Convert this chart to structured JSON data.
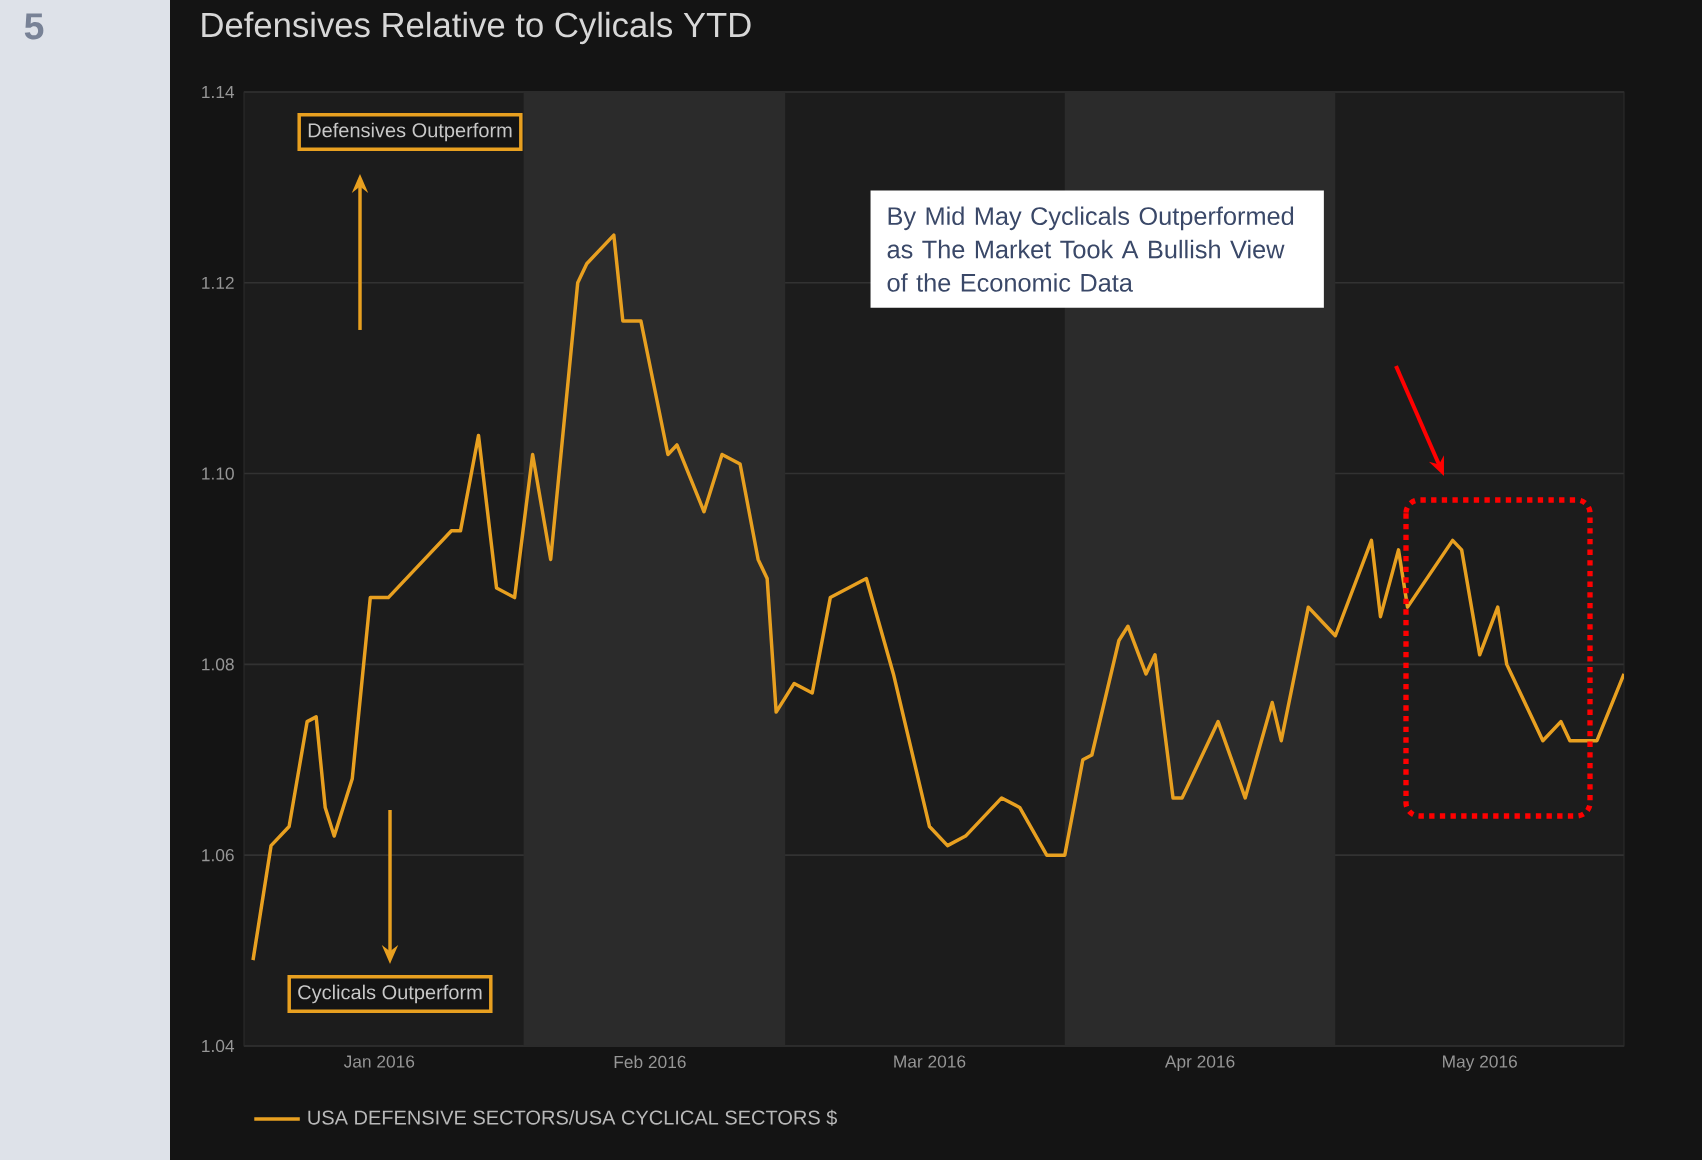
{
  "chart_data": {
    "type": "line",
    "title": "Defensives Relative to Cylicals YTD",
    "x": [
      "2016-01-02",
      "2016-01-04",
      "2016-01-06",
      "2016-01-08",
      "2016-01-09",
      "2016-01-10",
      "2016-01-11",
      "2016-01-13",
      "2016-01-15",
      "2016-01-17",
      "2016-01-21",
      "2016-01-24",
      "2016-01-25",
      "2016-01-27",
      "2016-01-29",
      "2016-01-31",
      "2016-02-02",
      "2016-02-04",
      "2016-02-07",
      "2016-02-08",
      "2016-02-11",
      "2016-02-12",
      "2016-02-14",
      "2016-02-17",
      "2016-02-18",
      "2016-02-21",
      "2016-02-23",
      "2016-02-25",
      "2016-02-27",
      "2016-02-28",
      "2016-02-29",
      "2016-03-02",
      "2016-03-04",
      "2016-03-06",
      "2016-03-10",
      "2016-03-13",
      "2016-03-17",
      "2016-03-19",
      "2016-03-21",
      "2016-03-25",
      "2016-03-27",
      "2016-03-30",
      "2016-04-01",
      "2016-04-03",
      "2016-04-04",
      "2016-04-07",
      "2016-04-08",
      "2016-04-10",
      "2016-04-11",
      "2016-04-13",
      "2016-04-14",
      "2016-04-18",
      "2016-04-21",
      "2016-04-24",
      "2016-04-25",
      "2016-04-28",
      "2016-05-01",
      "2016-05-05",
      "2016-05-06",
      "2016-05-08",
      "2016-05-09",
      "2016-05-14",
      "2016-05-15",
      "2016-05-17",
      "2016-05-19",
      "2016-05-20",
      "2016-05-24",
      "2016-05-26",
      "2016-05-27",
      "2016-05-30",
      "2016-06-02"
    ],
    "series": [
      {
        "name": "USA DEFENSIVE SECTORS/USA CYCLICAL SECTORS $",
        "color": "#e8a020",
        "values": [
          1.049,
          1.061,
          1.063,
          1.074,
          1.0745,
          1.065,
          1.062,
          1.068,
          1.087,
          1.087,
          1.091,
          1.094,
          1.094,
          1.104,
          1.088,
          1.087,
          1.102,
          1.091,
          1.12,
          1.122,
          1.125,
          1.116,
          1.116,
          1.102,
          1.103,
          1.096,
          1.102,
          1.101,
          1.091,
          1.089,
          1.075,
          1.078,
          1.077,
          1.087,
          1.089,
          1.079,
          1.063,
          1.061,
          1.062,
          1.066,
          1.065,
          1.06,
          1.06,
          1.07,
          1.0705,
          1.0825,
          1.084,
          1.079,
          1.081,
          1.066,
          1.066,
          1.074,
          1.066,
          1.076,
          1.072,
          1.086,
          1.083,
          1.093,
          1.085,
          1.092,
          1.086,
          1.093,
          1.092,
          1.081,
          1.086,
          1.08,
          1.072,
          1.074,
          1.072,
          1.072,
          1.079
        ]
      }
    ],
    "xlim": [
      "2016-01-01",
      "2016-06-02"
    ],
    "xticks": [
      {
        "value": "2016-01-16",
        "label": "Jan 2016"
      },
      {
        "value": "2016-02-15",
        "label": "Feb 2016"
      },
      {
        "value": "2016-03-17",
        "label": "Mar 2016"
      },
      {
        "value": "2016-04-16",
        "label": "Apr 2016"
      },
      {
        "value": "2016-05-17",
        "label": "May 2016"
      }
    ],
    "ylim": [
      1.04,
      1.14
    ],
    "yticks": [
      1.04,
      1.06,
      1.08,
      {
        "value": 1.1,
        "label": "1.10"
      },
      1.12,
      1.14
    ],
    "bands": [
      {
        "axis": "x",
        "from": "2016-02-01",
        "to": "2016-03-01",
        "color": "#2b2b2b"
      },
      {
        "axis": "x",
        "from": "2016-04-01",
        "to": "2016-05-01",
        "color": "#2b2b2b"
      }
    ],
    "grid": "y",
    "legend": "bottom left",
    "line_style": "solid",
    "annotations": [
      "Defensives Outperform",
      "Cyclicals Outperform",
      "By Mid May Cyclicals Outperformed  as The Market Took A Bullish View of the Economic Data",
      "5"
    ]
  }
}
